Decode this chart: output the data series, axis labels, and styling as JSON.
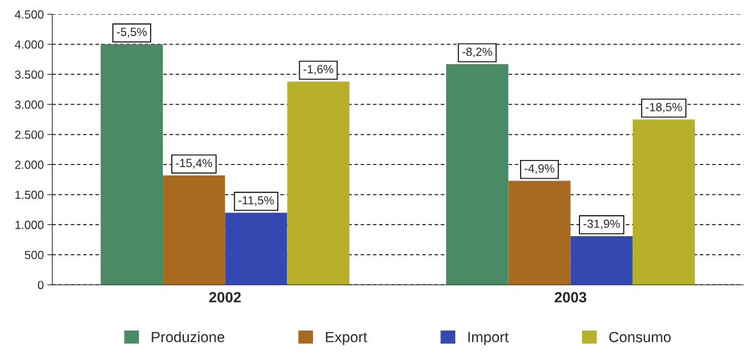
{
  "chart_data": {
    "type": "bar",
    "categories": [
      "2002",
      "2003"
    ],
    "series": [
      {
        "name": "Produzione",
        "color": "#4a8a64",
        "values": [
          4000,
          3670
        ]
      },
      {
        "name": "Export",
        "color": "#a86a1e",
        "values": [
          1820,
          1730
        ]
      },
      {
        "name": "Import",
        "color": "#3348b0",
        "values": [
          1200,
          810
        ]
      },
      {
        "name": "Consumo",
        "color": "#b8b02a",
        "values": [
          3380,
          2750
        ]
      }
    ],
    "annotations": [
      {
        "text": "-5,5%",
        "y": 4000
      },
      {
        "text": "-15,4%",
        "x": "2002",
        "y": 1820
      },
      {
        "text": "-11,5%",
        "x": "2002",
        "y": 1200
      },
      {
        "text": "-1,6%",
        "y": 3380
      },
      {
        "text": "-8,2%",
        "y": 3670
      },
      {
        "text": "-4,9%",
        "x": "2003",
        "y": 1730
      },
      {
        "text": "-31,9%",
        "x": "2003",
        "y": 810
      },
      {
        "text": "-18,5%",
        "y": 2750
      }
    ],
    "ylim": [
      0,
      4500
    ],
    "yticks": [
      0,
      500,
      {
        "value": 1000,
        "label": "1.000"
      },
      {
        "value": 1500,
        "label": "1.500"
      },
      {
        "value": 2000,
        "label": "2.000"
      },
      {
        "value": 2500,
        "label": "2.500"
      },
      {
        "value": 3000,
        "label": "3.000"
      },
      {
        "value": 3500,
        "label": "3.500"
      },
      {
        "value": 4000,
        "label": "4.000"
      },
      {
        "value": 4500,
        "label": "4.500"
      }
    ],
    "grid": "y",
    "legend": "bottom"
  }
}
